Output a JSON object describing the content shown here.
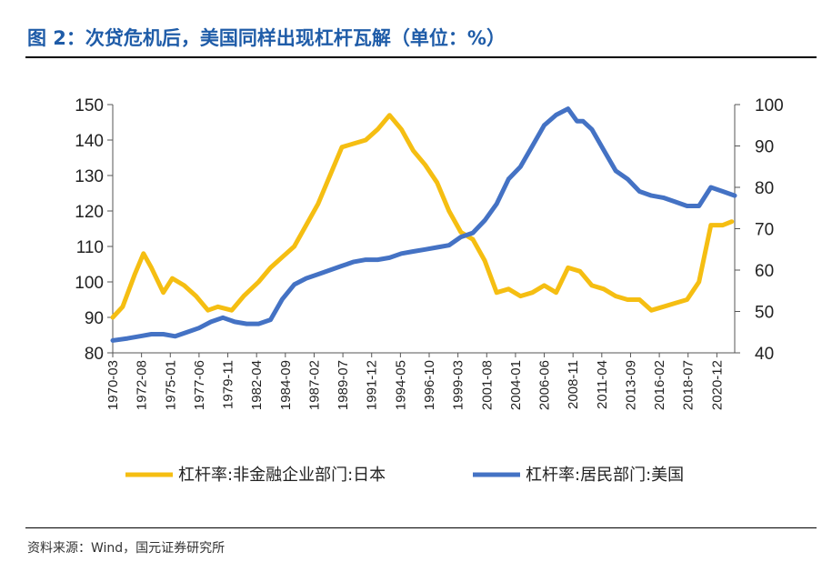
{
  "header": {
    "title": "图 2：次贷危机后，美国同样出现杠杆瓦解（单位：%）"
  },
  "footer": {
    "source": "资料来源：Wind，国元证券研究所"
  },
  "colors": {
    "japan": "#f5be12",
    "us": "#4472c4",
    "title": "#1f5ca8"
  },
  "chart_data": {
    "type": "line",
    "x_ticks": [
      "1970-03",
      "1972-08",
      "1975-01",
      "1977-06",
      "1979-11",
      "1982-04",
      "1984-09",
      "1987-02",
      "1989-07",
      "1991-12",
      "1994-05",
      "1996-10",
      "1999-03",
      "2001-08",
      "2004-01",
      "2006-06",
      "2008-11",
      "2011-04",
      "2013-09",
      "2016-02",
      "2018-07",
      "2020-12"
    ],
    "x_range": [
      "1970-03",
      "2022-06"
    ],
    "y_left": {
      "range": [
        80,
        150
      ],
      "ticks": [
        80,
        90,
        100,
        110,
        120,
        130,
        140,
        150
      ]
    },
    "y_right": {
      "range": [
        40,
        100
      ],
      "ticks": [
        40,
        50,
        60,
        70,
        80,
        90,
        100
      ]
    },
    "legend_position": "bottom",
    "series": [
      {
        "name": "杠杆率:非金融企业部门:日本",
        "axis": "left",
        "x": [
          "1970-03",
          "1971-01",
          "1972-01",
          "1972-10",
          "1973-06",
          "1974-06",
          "1975-03",
          "1976-03",
          "1977-03",
          "1978-03",
          "1979-01",
          "1980-03",
          "1981-03",
          "1982-06",
          "1983-06",
          "1984-06",
          "1985-06",
          "1986-06",
          "1987-06",
          "1988-06",
          "1989-06",
          "1990-06",
          "1991-06",
          "1992-06",
          "1993-06",
          "1994-06",
          "1995-06",
          "1996-06",
          "1997-06",
          "1998-06",
          "1999-06",
          "2000-06",
          "2001-06",
          "2002-06",
          "2003-06",
          "2004-06",
          "2005-06",
          "2006-06",
          "2007-06",
          "2008-06",
          "2009-06",
          "2010-06",
          "2011-06",
          "2012-06",
          "2013-06",
          "2014-06",
          "2015-06",
          "2016-06",
          "2017-06",
          "2018-06",
          "2019-06",
          "2020-06",
          "2021-06",
          "2022-03"
        ],
        "values": [
          90,
          93,
          102,
          108,
          104,
          97,
          101,
          99,
          96,
          92,
          93,
          92,
          96,
          100,
          104,
          107,
          110,
          116,
          122,
          130,
          138,
          139,
          140,
          143,
          147,
          143,
          137,
          133,
          128,
          120,
          114,
          112,
          106,
          97,
          98,
          96,
          97,
          99,
          97,
          104,
          103,
          99,
          98,
          96,
          95,
          95,
          92,
          93,
          94,
          95,
          100,
          116,
          116,
          117
        ]
      },
      {
        "name": "杠杆率:居民部门:美国",
        "axis": "right",
        "x": [
          "1970-03",
          "1971-06",
          "1972-06",
          "1973-06",
          "1974-06",
          "1975-06",
          "1976-06",
          "1977-06",
          "1978-06",
          "1979-06",
          "1980-06",
          "1981-06",
          "1982-06",
          "1983-06",
          "1984-06",
          "1985-06",
          "1986-06",
          "1987-06",
          "1988-06",
          "1989-06",
          "1990-06",
          "1991-06",
          "1992-06",
          "1993-06",
          "1994-06",
          "1995-06",
          "1996-06",
          "1997-06",
          "1998-06",
          "1999-06",
          "2000-06",
          "2001-06",
          "2002-06",
          "2003-06",
          "2004-06",
          "2005-06",
          "2006-06",
          "2007-06",
          "2008-06",
          "2009-03",
          "2009-09",
          "2010-06",
          "2011-06",
          "2012-06",
          "2013-06",
          "2014-06",
          "2015-06",
          "2016-06",
          "2017-06",
          "2018-06",
          "2019-06",
          "2020-06",
          "2021-06",
          "2022-06"
        ],
        "values": [
          43,
          43.5,
          44,
          44.5,
          44.5,
          44,
          45,
          46,
          47.5,
          48.5,
          47.5,
          47,
          47,
          48,
          53,
          56.5,
          58,
          59,
          60,
          61,
          62,
          62.5,
          62.5,
          63,
          64,
          64.5,
          65,
          65.5,
          66,
          68,
          69,
          72,
          76,
          82,
          85,
          90,
          95,
          97.5,
          99,
          96,
          96,
          94,
          89,
          84,
          82,
          79,
          78,
          77.5,
          76.5,
          75.5,
          75.5,
          80,
          79,
          78
        ]
      }
    ]
  }
}
